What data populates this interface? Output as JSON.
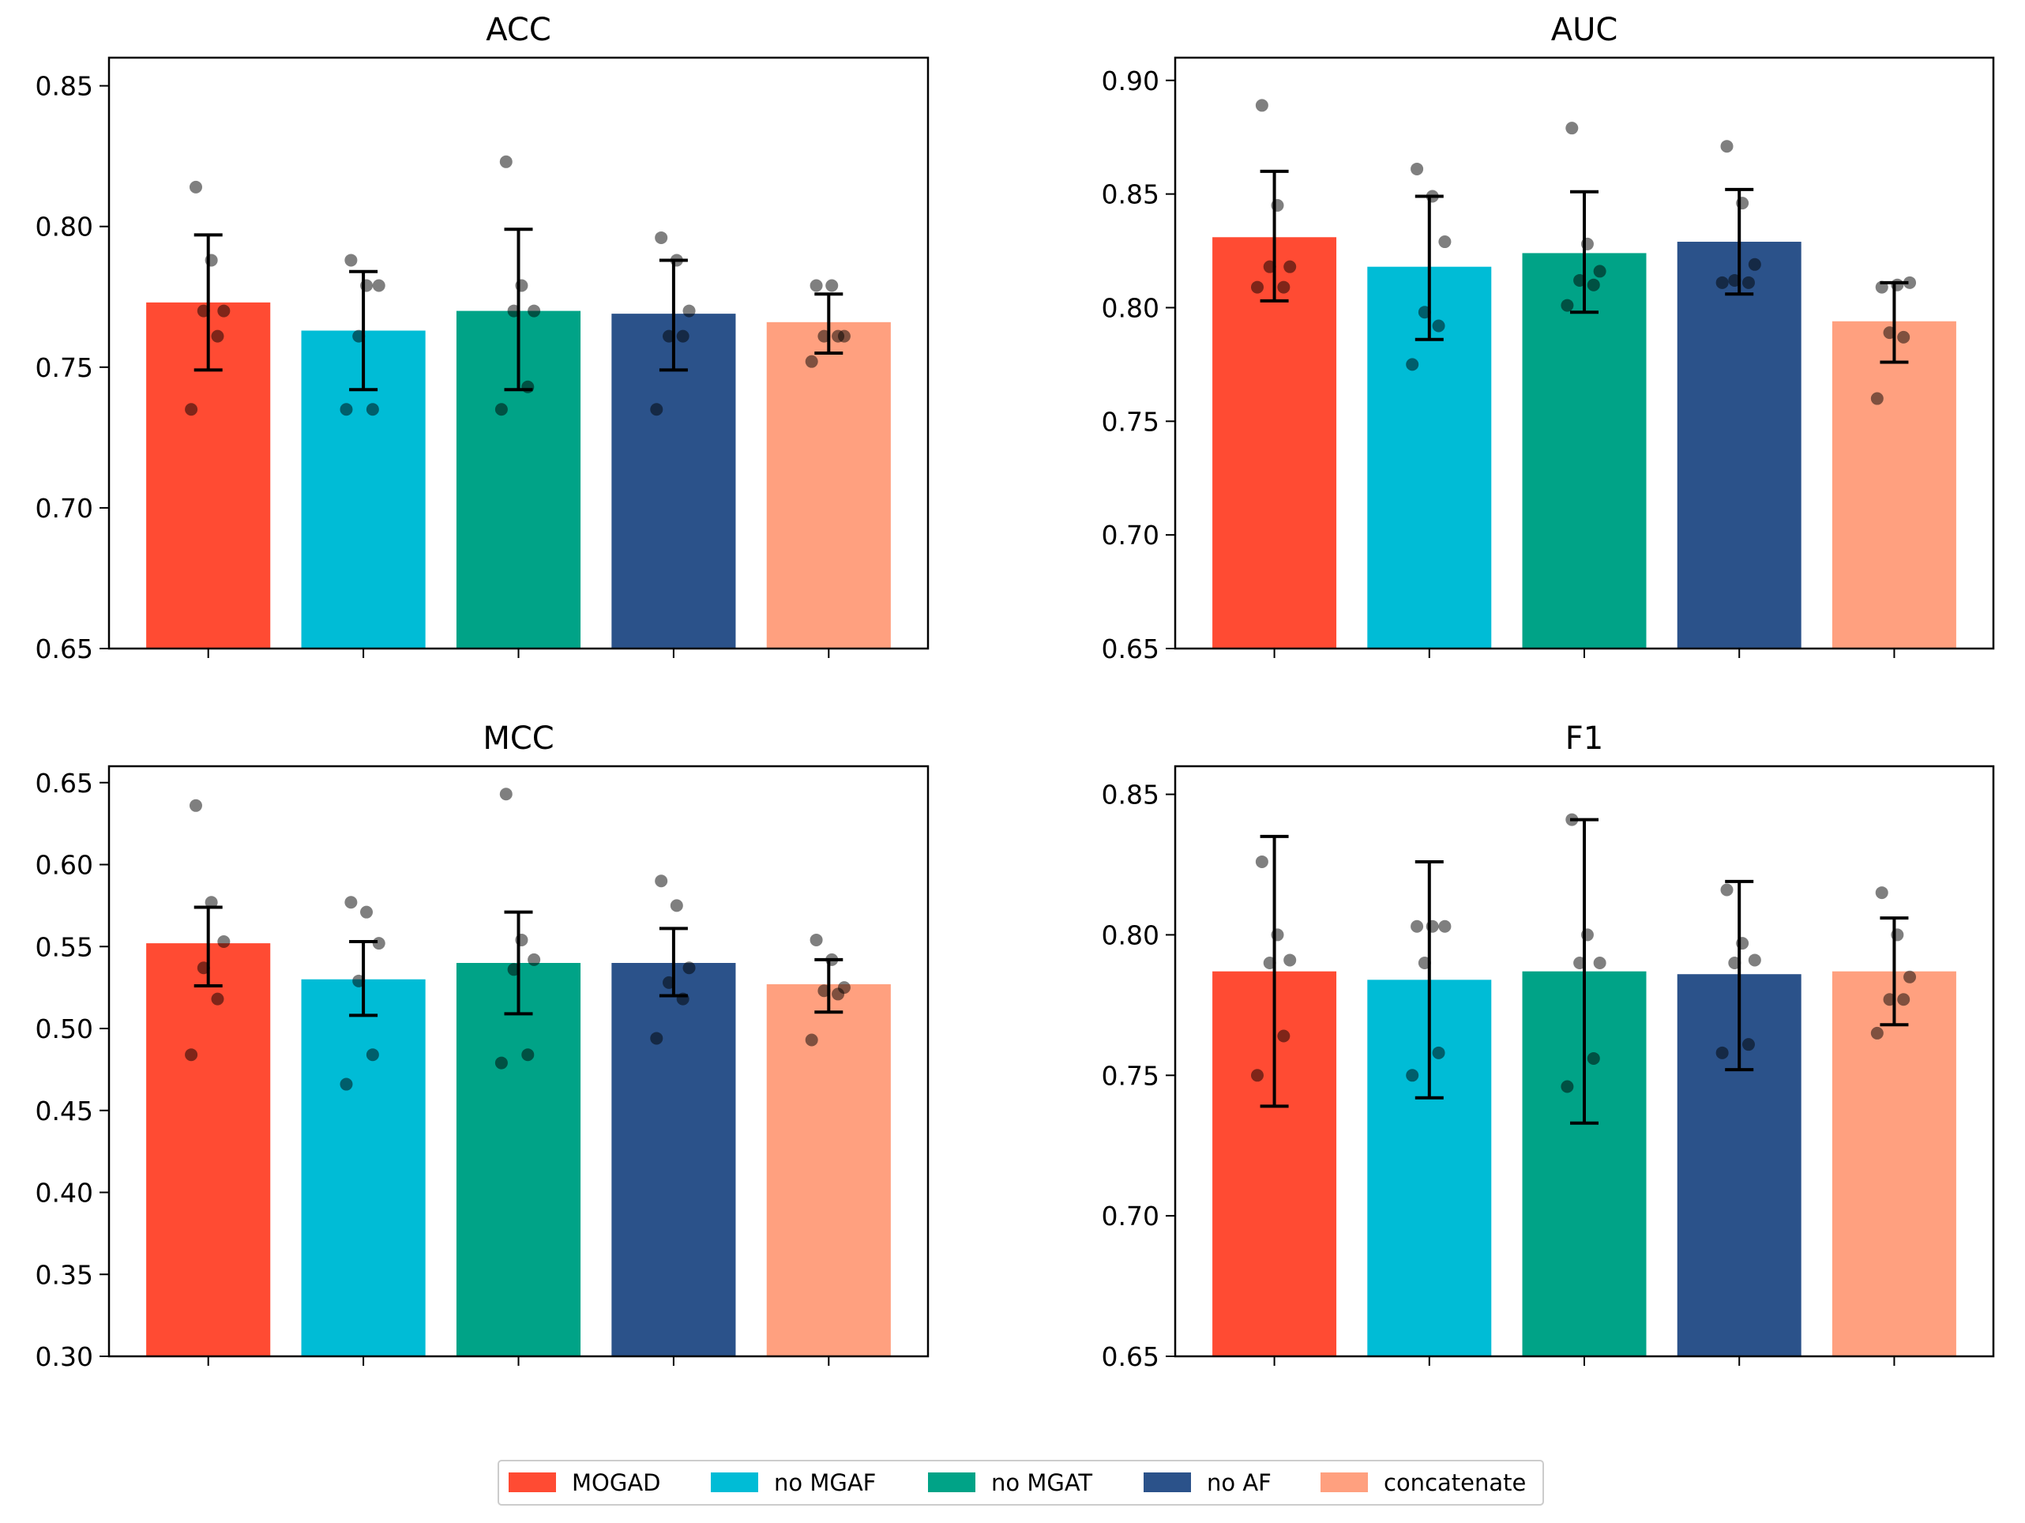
{
  "chart_data": {
    "type": "bar",
    "categories": [
      "MOGAD",
      "no MGAF",
      "no MGAT",
      "no AF",
      "concatenate"
    ],
    "colors": [
      "#FF4B33",
      "#00BCD6",
      "#00A387",
      "#2B528A",
      "#FFA07F"
    ],
    "legend": {
      "placement": "bottom-center",
      "entries": [
        "MOGAD",
        "no MGAF",
        "no MGAT",
        "no AF",
        "concatenate"
      ]
    },
    "grid": false,
    "subplots": [
      {
        "title": "ACC",
        "ylim": [
          0.65,
          0.86
        ],
        "yticks": [
          "0.65",
          "0.70",
          "0.75",
          "0.80",
          "0.85"
        ],
        "values": [
          0.773,
          0.763,
          0.77,
          0.769,
          0.766
        ],
        "err_low": [
          0.749,
          0.742,
          0.742,
          0.749,
          0.755
        ],
        "err_high": [
          0.797,
          0.784,
          0.799,
          0.788,
          0.776
        ],
        "points": [
          [
            0.814,
            0.788,
            0.77,
            0.77,
            0.761,
            0.735
          ],
          [
            0.788,
            0.779,
            0.779,
            0.761,
            0.735,
            0.735
          ],
          [
            0.823,
            0.779,
            0.77,
            0.77,
            0.743,
            0.735
          ],
          [
            0.796,
            0.788,
            0.77,
            0.761,
            0.761,
            0.735
          ],
          [
            0.779,
            0.779,
            0.761,
            0.761,
            0.761,
            0.752
          ]
        ]
      },
      {
        "title": "AUC",
        "ylim": [
          0.65,
          0.91
        ],
        "yticks": [
          "0.65",
          "0.70",
          "0.75",
          "0.80",
          "0.85",
          "0.90"
        ],
        "values": [
          0.831,
          0.818,
          0.824,
          0.829,
          0.794
        ],
        "err_low": [
          0.803,
          0.786,
          0.798,
          0.806,
          0.776
        ],
        "err_high": [
          0.86,
          0.849,
          0.851,
          0.852,
          0.811
        ],
        "points": [
          [
            0.889,
            0.845,
            0.818,
            0.818,
            0.809,
            0.809
          ],
          [
            0.861,
            0.849,
            0.829,
            0.798,
            0.792,
            0.775
          ],
          [
            0.879,
            0.828,
            0.816,
            0.812,
            0.81,
            0.801
          ],
          [
            0.871,
            0.846,
            0.819,
            0.812,
            0.811,
            0.811
          ],
          [
            0.809,
            0.81,
            0.811,
            0.789,
            0.787,
            0.76
          ]
        ]
      },
      {
        "title": "MCC",
        "ylim": [
          0.3,
          0.66
        ],
        "yticks": [
          "0.30",
          "0.35",
          "0.40",
          "0.45",
          "0.50",
          "0.55",
          "0.60",
          "0.65"
        ],
        "values": [
          0.552,
          0.53,
          0.54,
          0.54,
          0.527
        ],
        "err_low": [
          0.526,
          0.508,
          0.509,
          0.52,
          0.51
        ],
        "err_high": [
          0.574,
          0.553,
          0.571,
          0.561,
          0.542
        ],
        "points": [
          [
            0.636,
            0.577,
            0.553,
            0.537,
            0.518,
            0.484
          ],
          [
            0.577,
            0.571,
            0.552,
            0.529,
            0.484,
            0.466
          ],
          [
            0.643,
            0.554,
            0.542,
            0.536,
            0.484,
            0.479
          ],
          [
            0.59,
            0.575,
            0.537,
            0.528,
            0.518,
            0.494
          ],
          [
            0.554,
            0.542,
            0.525,
            0.523,
            0.521,
            0.493
          ]
        ]
      },
      {
        "title": "F1",
        "ylim": [
          0.65,
          0.86
        ],
        "yticks": [
          "0.65",
          "0.70",
          "0.75",
          "0.80",
          "0.85"
        ],
        "values": [
          0.787,
          0.784,
          0.787,
          0.786,
          0.787
        ],
        "err_low": [
          0.739,
          0.742,
          0.733,
          0.752,
          0.768
        ],
        "err_high": [
          0.835,
          0.826,
          0.841,
          0.819,
          0.806
        ],
        "points": [
          [
            0.826,
            0.8,
            0.791,
            0.79,
            0.764,
            0.75
          ],
          [
            0.803,
            0.803,
            0.803,
            0.79,
            0.758,
            0.75
          ],
          [
            0.841,
            0.8,
            0.79,
            0.79,
            0.756,
            0.746
          ],
          [
            0.816,
            0.797,
            0.791,
            0.79,
            0.761,
            0.758
          ],
          [
            0.815,
            0.8,
            0.785,
            0.777,
            0.777,
            0.765
          ]
        ]
      }
    ]
  }
}
